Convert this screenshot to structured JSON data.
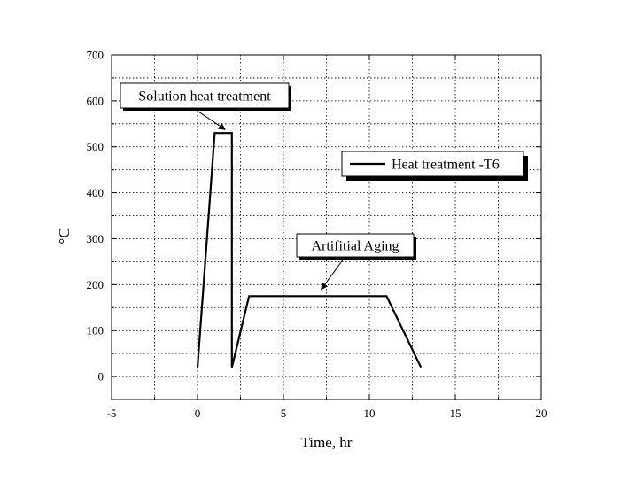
{
  "chart_data": {
    "type": "line",
    "title": "",
    "xlabel": "Time, hr",
    "ylabel": "°C",
    "xlim": [
      -5,
      20
    ],
    "ylim": [
      -50,
      700
    ],
    "x_ticks": [
      -5,
      0,
      5,
      10,
      15,
      20
    ],
    "y_ticks": [
      0,
      100,
      200,
      300,
      400,
      500,
      600,
      700
    ],
    "grid": true,
    "legend_position": "right",
    "series": [
      {
        "name": "Heat treatment -T6",
        "color": "#000000",
        "x": [
          0,
          1,
          2,
          2,
          3,
          11,
          13
        ],
        "y": [
          20,
          530,
          530,
          20,
          175,
          175,
          20
        ]
      }
    ],
    "annotations": [
      {
        "text": "Solution heat treatment",
        "target_x": 1.6,
        "target_y": 530
      },
      {
        "text": "Artifitial Aging",
        "target_x": 7.2,
        "target_y": 182
      }
    ]
  }
}
